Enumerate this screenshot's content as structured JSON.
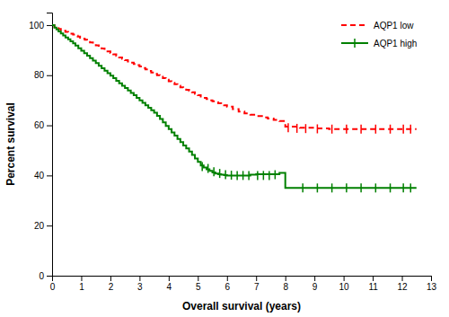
{
  "chart_data": {
    "type": "step",
    "xlabel": "Overall survival (years)",
    "ylabel": "Percent survival",
    "xlim": [
      0,
      13
    ],
    "ylim": [
      0,
      105
    ],
    "xticks": [
      0,
      1,
      2,
      3,
      4,
      5,
      6,
      7,
      8,
      9,
      10,
      11,
      12,
      13
    ],
    "yticks": [
      0,
      20,
      40,
      60,
      80,
      100
    ],
    "legend": "upper right",
    "series": [
      {
        "name": "AQP1 low",
        "color": "#FF0000",
        "line_style": "dashed",
        "x": [
          0,
          0.08,
          0.15,
          0.22,
          0.3,
          0.38,
          0.46,
          0.55,
          0.63,
          0.72,
          0.8,
          0.88,
          0.96,
          1.04,
          1.12,
          1.2,
          1.3,
          1.4,
          1.5,
          1.6,
          1.7,
          1.8,
          1.9,
          2.0,
          2.1,
          2.2,
          2.3,
          2.4,
          2.5,
          2.6,
          2.7,
          2.8,
          2.9,
          3.0,
          3.1,
          3.2,
          3.3,
          3.4,
          3.5,
          3.6,
          3.7,
          3.8,
          3.9,
          4.0,
          4.1,
          4.2,
          4.3,
          4.4,
          4.5,
          4.6,
          4.7,
          4.8,
          4.9,
          5.0,
          5.1,
          5.2,
          5.3,
          5.4,
          5.5,
          5.6,
          5.7,
          5.8,
          5.9,
          6.0,
          6.2,
          6.4,
          6.6,
          6.8,
          7.0,
          7.2,
          7.4,
          7.6,
          7.8,
          8.0,
          8.5,
          9.0,
          9.5,
          10.0,
          10.5,
          11.0,
          11.5,
          12.0,
          12.5
        ],
        "values": [
          100,
          99.2,
          98.8,
          98.5,
          98.1,
          97.7,
          97.3,
          97.0,
          96.6,
          96.2,
          95.8,
          95.4,
          95.0,
          94.6,
          94.2,
          93.8,
          93.1,
          92.5,
          91.9,
          91.3,
          90.7,
          90.1,
          89.5,
          88.9,
          88.3,
          87.7,
          87.1,
          86.5,
          86.0,
          85.5,
          85.0,
          84.5,
          84.0,
          83.5,
          82.9,
          82.3,
          81.7,
          81.1,
          80.5,
          80.0,
          79.4,
          78.8,
          78.2,
          77.6,
          77.0,
          76.4,
          75.8,
          75.2,
          74.7,
          74.2,
          73.7,
          73.2,
          72.6,
          72.0,
          71.5,
          71.0,
          70.5,
          70.0,
          69.6,
          69.2,
          68.8,
          68.4,
          68.0,
          67.5,
          66.5,
          65.5,
          64.8,
          64.2,
          63.7,
          63.2,
          62.7,
          62.2,
          61.7,
          59.5,
          59.0,
          58.8,
          58.5,
          58.5,
          58.5,
          58.5,
          58.5,
          58.5,
          58.5
        ],
        "censor_times": [
          8.1,
          8.4,
          8.7,
          9.1,
          9.6,
          10.1,
          10.6,
          11.1,
          11.6,
          12.05,
          12.3
        ],
        "censor_values": [
          59.0,
          58.8,
          58.7,
          58.6,
          58.5,
          58.5,
          58.5,
          58.5,
          58.5,
          58.5,
          58.5
        ]
      },
      {
        "name": "AQP1 high",
        "color": "#008000",
        "line_style": "solid",
        "marker": "vline",
        "x": [
          0,
          0.08,
          0.15,
          0.22,
          0.3,
          0.38,
          0.46,
          0.55,
          0.63,
          0.72,
          0.8,
          0.9,
          1.0,
          1.1,
          1.2,
          1.3,
          1.4,
          1.5,
          1.6,
          1.7,
          1.8,
          1.9,
          2.0,
          2.1,
          2.2,
          2.3,
          2.4,
          2.5,
          2.6,
          2.7,
          2.8,
          2.9,
          3.0,
          3.1,
          3.2,
          3.3,
          3.4,
          3.5,
          3.6,
          3.7,
          3.8,
          3.9,
          4.0,
          4.1,
          4.2,
          4.3,
          4.4,
          4.5,
          4.6,
          4.7,
          4.8,
          4.9,
          5.0,
          5.1,
          5.2,
          5.3,
          5.4,
          5.5,
          5.6,
          5.7,
          5.8,
          5.9,
          6.0,
          6.2,
          6.4,
          6.6,
          6.8,
          7.0,
          7.5,
          7.8,
          8.0,
          8.5,
          9.0,
          9.5,
          10.0,
          10.5,
          11.0,
          11.5,
          12.0,
          12.5
        ],
        "values": [
          100,
          99.0,
          98.3,
          97.5,
          96.7,
          95.9,
          95.1,
          94.3,
          93.5,
          92.7,
          91.8,
          90.8,
          89.8,
          88.8,
          87.8,
          86.8,
          85.8,
          84.8,
          83.8,
          82.8,
          81.8,
          80.8,
          79.8,
          78.8,
          77.8,
          76.8,
          75.8,
          74.9,
          73.9,
          72.9,
          72.0,
          71.0,
          70.0,
          69.0,
          68.0,
          67.0,
          66.0,
          65.0,
          63.8,
          62.5,
          61.2,
          59.8,
          58.5,
          57.2,
          55.9,
          54.6,
          53.3,
          52.0,
          50.8,
          49.5,
          48.2,
          46.8,
          45.4,
          44.0,
          43.2,
          42.5,
          41.8,
          41.2,
          40.8,
          40.5,
          40.3,
          40.1,
          40.0,
          40.0,
          40.0,
          40.0,
          40.3,
          40.5,
          40.5,
          41.0,
          35.0,
          35.0,
          35.0,
          35.0,
          35.0,
          35.0,
          35.0,
          35.0,
          35.0,
          35.0
        ],
        "censor_times": [
          5.15,
          5.35,
          5.55,
          5.75,
          5.95,
          6.15,
          6.35,
          6.55,
          6.75,
          7.05,
          7.25,
          7.45,
          7.65,
          8.6,
          9.1,
          9.6,
          10.1,
          10.6,
          11.1,
          11.6,
          12.05,
          12.3
        ],
        "censor_values": [
          43.5,
          42.8,
          41.5,
          40.8,
          40.3,
          40.1,
          40.0,
          40.0,
          40.0,
          40.0,
          40.0,
          40.0,
          40.3,
          35.0,
          35.0,
          35.0,
          35.0,
          35.0,
          35.0,
          35.0,
          35.0,
          35.0
        ]
      }
    ]
  }
}
